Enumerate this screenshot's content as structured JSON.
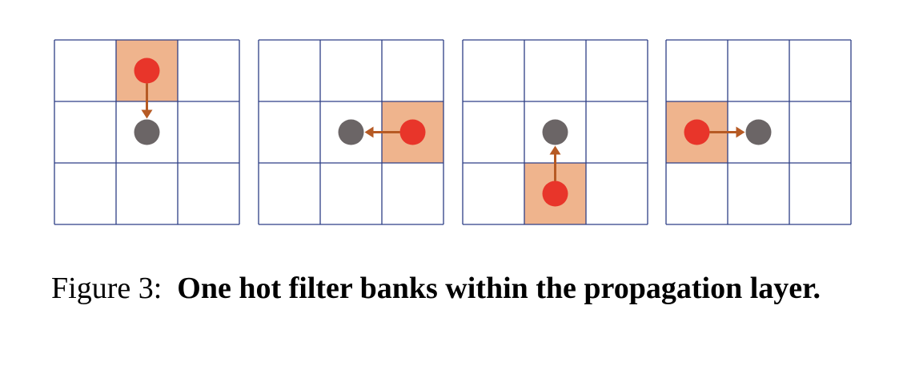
{
  "figure": {
    "caption_label": "Figure 3:",
    "caption_text": "One hot filter banks within the propagation layer.",
    "panels": [
      {
        "hot_cell": [
          0,
          1
        ],
        "center_cell": [
          1,
          1
        ],
        "arrow": "down"
      },
      {
        "hot_cell": [
          1,
          2
        ],
        "center_cell": [
          1,
          1
        ],
        "arrow": "left"
      },
      {
        "hot_cell": [
          2,
          1
        ],
        "center_cell": [
          1,
          1
        ],
        "arrow": "up"
      },
      {
        "hot_cell": [
          1,
          0
        ],
        "center_cell": [
          1,
          1
        ],
        "arrow": "right"
      }
    ],
    "colors": {
      "grid_line": "#2e3f86",
      "hot_fill": "#efb48d",
      "source_dot": "#e8352a",
      "target_dot": "#6b6566",
      "arrow": "#b65a24"
    }
  }
}
